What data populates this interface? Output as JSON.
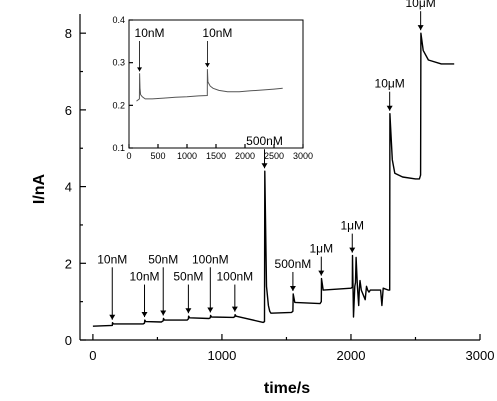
{
  "chart_data": [
    {
      "type": "line",
      "xlabel": "time/s",
      "ylabel": "I/nA",
      "xlim": [
        -100,
        3000
      ],
      "ylim": [
        0,
        8.5
      ],
      "xticks": [
        0,
        1000,
        2000,
        3000
      ],
      "xticks_minor": [
        500,
        1500,
        2500
      ],
      "yticks": [
        0,
        2,
        4,
        6,
        8
      ],
      "series": [
        {
          "x": [
            0,
            150,
            152,
            160,
            390,
            400,
            402,
            410,
            530,
            545,
            547,
            555,
            730,
            740,
            742,
            750,
            900,
            910,
            912,
            920,
            1090,
            1100,
            1102,
            1110,
            1320,
            1330,
            1332,
            1345,
            1360,
            1370,
            1380,
            1540,
            1550,
            1552,
            1565,
            1760,
            1770,
            1772,
            1785,
            2000,
            2010,
            2012,
            2020,
            2030,
            2035,
            2040,
            2050,
            2060,
            2065,
            2070,
            2080,
            2110,
            2120,
            2130,
            2140,
            2150,
            2160,
            2230,
            2240,
            2250,
            2290,
            2300,
            2302,
            2320,
            2340,
            2400,
            2500,
            2530,
            2540,
            2542,
            2560,
            2600,
            2700,
            2800
          ],
          "y": [
            0.36,
            0.38,
            0.45,
            0.42,
            0.42,
            0.44,
            0.52,
            0.48,
            0.47,
            0.5,
            0.56,
            0.52,
            0.52,
            0.55,
            0.62,
            0.58,
            0.56,
            0.58,
            0.64,
            0.6,
            0.59,
            0.61,
            0.66,
            0.62,
            0.46,
            0.48,
            4.4,
            1.4,
            0.9,
            0.75,
            0.7,
            0.72,
            0.75,
            1.2,
            0.98,
            0.95,
            1.0,
            1.6,
            1.3,
            1.35,
            1.38,
            2.2,
            0.6,
            1.4,
            1.5,
            2.15,
            1.4,
            0.9,
            1.35,
            1.55,
            1.3,
            1.05,
            1.4,
            1.3,
            1.25,
            1.3,
            1.3,
            1.3,
            0.9,
            1.35,
            1.3,
            1.3,
            5.9,
            4.7,
            4.35,
            4.25,
            4.2,
            4.2,
            4.3,
            8.0,
            7.55,
            7.3,
            7.2,
            7.2
          ]
        }
      ],
      "annotations": [
        {
          "text": "10nM",
          "x": 150,
          "y": 0.45,
          "row": 1
        },
        {
          "text": "10nM",
          "x": 400,
          "y": 0.52,
          "row": 2
        },
        {
          "text": "50nM",
          "x": 545,
          "y": 0.56,
          "row": 1
        },
        {
          "text": "50nM",
          "x": 740,
          "y": 0.62,
          "row": 2
        },
        {
          "text": "100nM",
          "x": 910,
          "y": 0.64,
          "row": 1
        },
        {
          "text": "100nM",
          "x": 1100,
          "y": 0.66,
          "row": 2
        },
        {
          "text": "500nM",
          "x": 1330,
          "y": 4.4,
          "row": 0
        },
        {
          "text": "500nM",
          "x": 1550,
          "y": 1.2,
          "row": 0
        },
        {
          "text": "1μM",
          "x": 1770,
          "y": 1.6,
          "row": 0
        },
        {
          "text": "1μM",
          "x": 2010,
          "y": 2.2,
          "row": 0
        },
        {
          "text": "10μM",
          "x": 2300,
          "y": 5.9,
          "row": 0
        },
        {
          "text": "10μM",
          "x": 2540,
          "y": 8.0,
          "row": 0
        }
      ]
    },
    {
      "type": "line",
      "inset": true,
      "xlim": [
        0,
        3000
      ],
      "ylim": [
        0.1,
        0.4
      ],
      "xticks": [
        0,
        500,
        1000,
        1500,
        2000,
        2500,
        3000
      ],
      "yticks": [
        0.1,
        0.2,
        0.3,
        0.4
      ],
      "series": [
        {
          "x": [
            130,
            180,
            182,
            190,
            200,
            230,
            280,
            400,
            600,
            800,
            1000,
            1200,
            1350,
            1352,
            1360,
            1400,
            1450,
            1550,
            1700,
            1900,
            2100,
            2300,
            2500,
            2650
          ],
          "y": [
            0.21,
            0.215,
            0.275,
            0.24,
            0.225,
            0.22,
            0.215,
            0.215,
            0.217,
            0.219,
            0.22,
            0.222,
            0.223,
            0.285,
            0.255,
            0.245,
            0.24,
            0.235,
            0.232,
            0.232,
            0.234,
            0.236,
            0.238,
            0.24
          ]
        }
      ],
      "annotations": [
        {
          "text": "10nM",
          "x": 182,
          "y": 0.275
        },
        {
          "text": "10nM",
          "x": 1352,
          "y": 0.285
        }
      ]
    }
  ]
}
